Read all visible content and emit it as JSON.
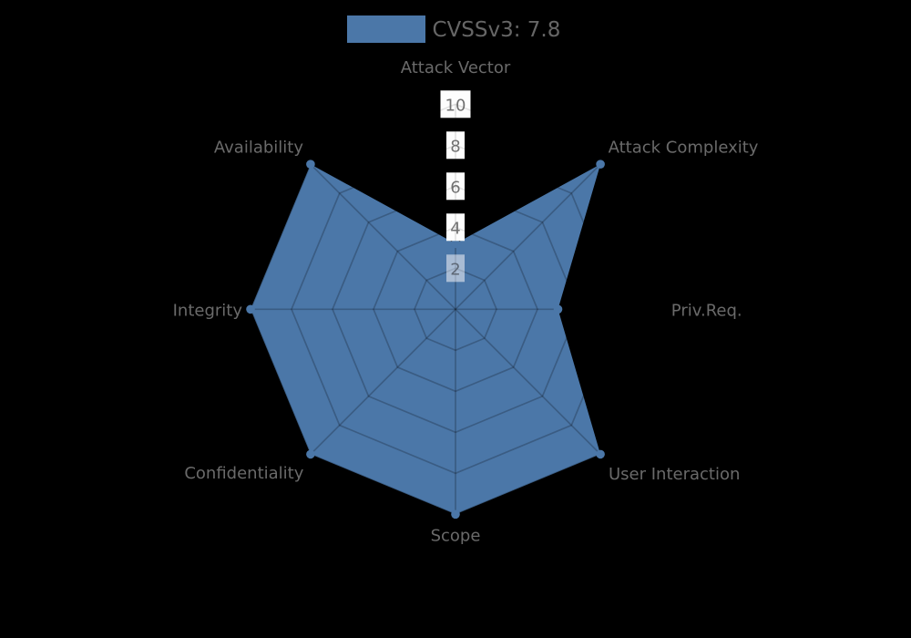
{
  "chart_data": {
    "type": "radar",
    "title": "CVSSv3: 7.8",
    "rlim": [
      0,
      10
    ],
    "r_ticks": [
      {
        "label": "10",
        "value": 10,
        "box_color": "#fdfdfd",
        "text_color": "#717171"
      },
      {
        "label": "8",
        "value": 8,
        "box_color": "#fdfdfd",
        "text_color": "#717171"
      },
      {
        "label": "6",
        "value": 6,
        "box_color": "#fdfdfd",
        "text_color": "#717171"
      },
      {
        "label": "4",
        "value": 4,
        "box_color": "#fdfdfd",
        "text_color": "#717171"
      },
      {
        "label": "2",
        "value": 2,
        "box_color": "#a9bcd4",
        "text_color": "#5e6876"
      }
    ],
    "axes": [
      {
        "label": "Attack Vector",
        "value": 3.2
      },
      {
        "label": "Attack Complexity",
        "value": 10
      },
      {
        "label": "Priv.Req.",
        "value": 5
      },
      {
        "label": "User Interaction",
        "value": 10
      },
      {
        "label": "Scope",
        "value": 10
      },
      {
        "label": "Confidentiality",
        "value": 10
      },
      {
        "label": "Integrity",
        "value": 10
      },
      {
        "label": "Availability",
        "value": 10
      }
    ],
    "series": [
      {
        "name": "CVSSv3: 7.8",
        "color": "#4b77a8",
        "values": [
          3.2,
          10,
          5,
          10,
          10,
          10,
          10,
          10
        ]
      }
    ],
    "grid": true,
    "legend_position": "top"
  },
  "legend": {
    "label": "CVSSv3: 7.8",
    "swatch_color": "#4b77a8",
    "text_color": "#666666"
  },
  "colors": {
    "background": "#000000",
    "fill": "#4b77a8",
    "grid_line": "rgba(0,0,0,0.22)",
    "grid_line_over_boxes": "rgba(0,0,0,0.10)",
    "axis_label": "#6a6a6a"
  }
}
